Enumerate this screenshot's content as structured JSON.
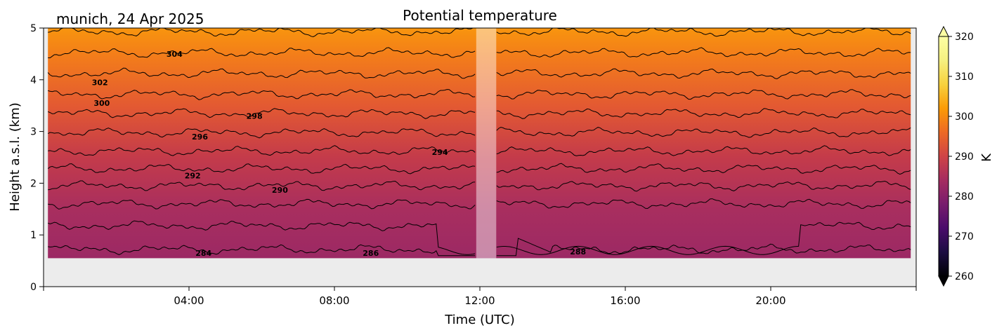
{
  "chart_data": {
    "type": "heatmap",
    "title": "Potential temperature",
    "location_date": "munich, 24 Apr 2025",
    "xlabel": "Time (UTC)",
    "ylabel": "Height a.s.l. (km)",
    "xticks": [
      "04:00",
      "08:00",
      "12:00",
      "16:00",
      "20:00"
    ],
    "xtick_hours": [
      4,
      8,
      12,
      16,
      20
    ],
    "xlim_hours": [
      0,
      24
    ],
    "yticks": [
      "0",
      "1",
      "2",
      "3",
      "4",
      "5"
    ],
    "ylim": [
      0,
      5
    ],
    "data_bottom_km": 0.55,
    "no_data_time_hours": [
      11.9,
      12.45
    ],
    "no_data_color": "#ececec",
    "colorbar": {
      "label": "K",
      "cmap": "inferno",
      "range": [
        260,
        320
      ],
      "ticks": [
        260,
        270,
        280,
        290,
        300,
        310,
        320
      ],
      "extend": "both"
    },
    "theta_profile": [
      {
        "height_km": 0.55,
        "theta_k": 283
      },
      {
        "height_km": 1.5,
        "theta_k": 287
      },
      {
        "height_km": 2.5,
        "theta_k": 293
      },
      {
        "height_km": 3.5,
        "theta_k": 299
      },
      {
        "height_km": 4.5,
        "theta_k": 305
      },
      {
        "height_km": 5.0,
        "theta_k": 307
      }
    ],
    "contours": [
      {
        "level": 284,
        "base_height_km": 0.72
      },
      {
        "level": 286,
        "base_height_km": 1.18
      },
      {
        "level": 288,
        "base_height_km": 1.6
      },
      {
        "level": 290,
        "base_height_km": 1.95
      },
      {
        "level": 292,
        "base_height_km": 2.28
      },
      {
        "level": 294,
        "base_height_km": 2.62
      },
      {
        "level": 296,
        "base_height_km": 2.98
      },
      {
        "level": 298,
        "base_height_km": 3.35
      },
      {
        "level": 300,
        "base_height_km": 3.72
      },
      {
        "level": 302,
        "base_height_km": 4.12
      },
      {
        "level": 304,
        "base_height_km": 4.52
      },
      {
        "level": 306,
        "base_height_km": 4.93
      }
    ],
    "contour_labels": [
      {
        "text": "284",
        "hour": 4.4,
        "height_km": 0.65
      },
      {
        "text": "286",
        "hour": 9.0,
        "height_km": 0.65
      },
      {
        "text": "288",
        "hour": 14.7,
        "height_km": 0.68
      },
      {
        "text": "290",
        "hour": 6.5,
        "height_km": 1.87
      },
      {
        "text": "292",
        "hour": 4.1,
        "height_km": 2.15
      },
      {
        "text": "294",
        "hour": 10.9,
        "height_km": 2.6
      },
      {
        "text": "296",
        "hour": 4.3,
        "height_km": 2.9
      },
      {
        "text": "298",
        "hour": 5.8,
        "height_km": 3.3
      },
      {
        "text": "300",
        "hour": 1.6,
        "height_km": 3.55
      },
      {
        "text": "302",
        "hour": 1.55,
        "height_km": 3.95
      },
      {
        "text": "304",
        "hour": 3.6,
        "height_km": 4.5
      }
    ]
  }
}
